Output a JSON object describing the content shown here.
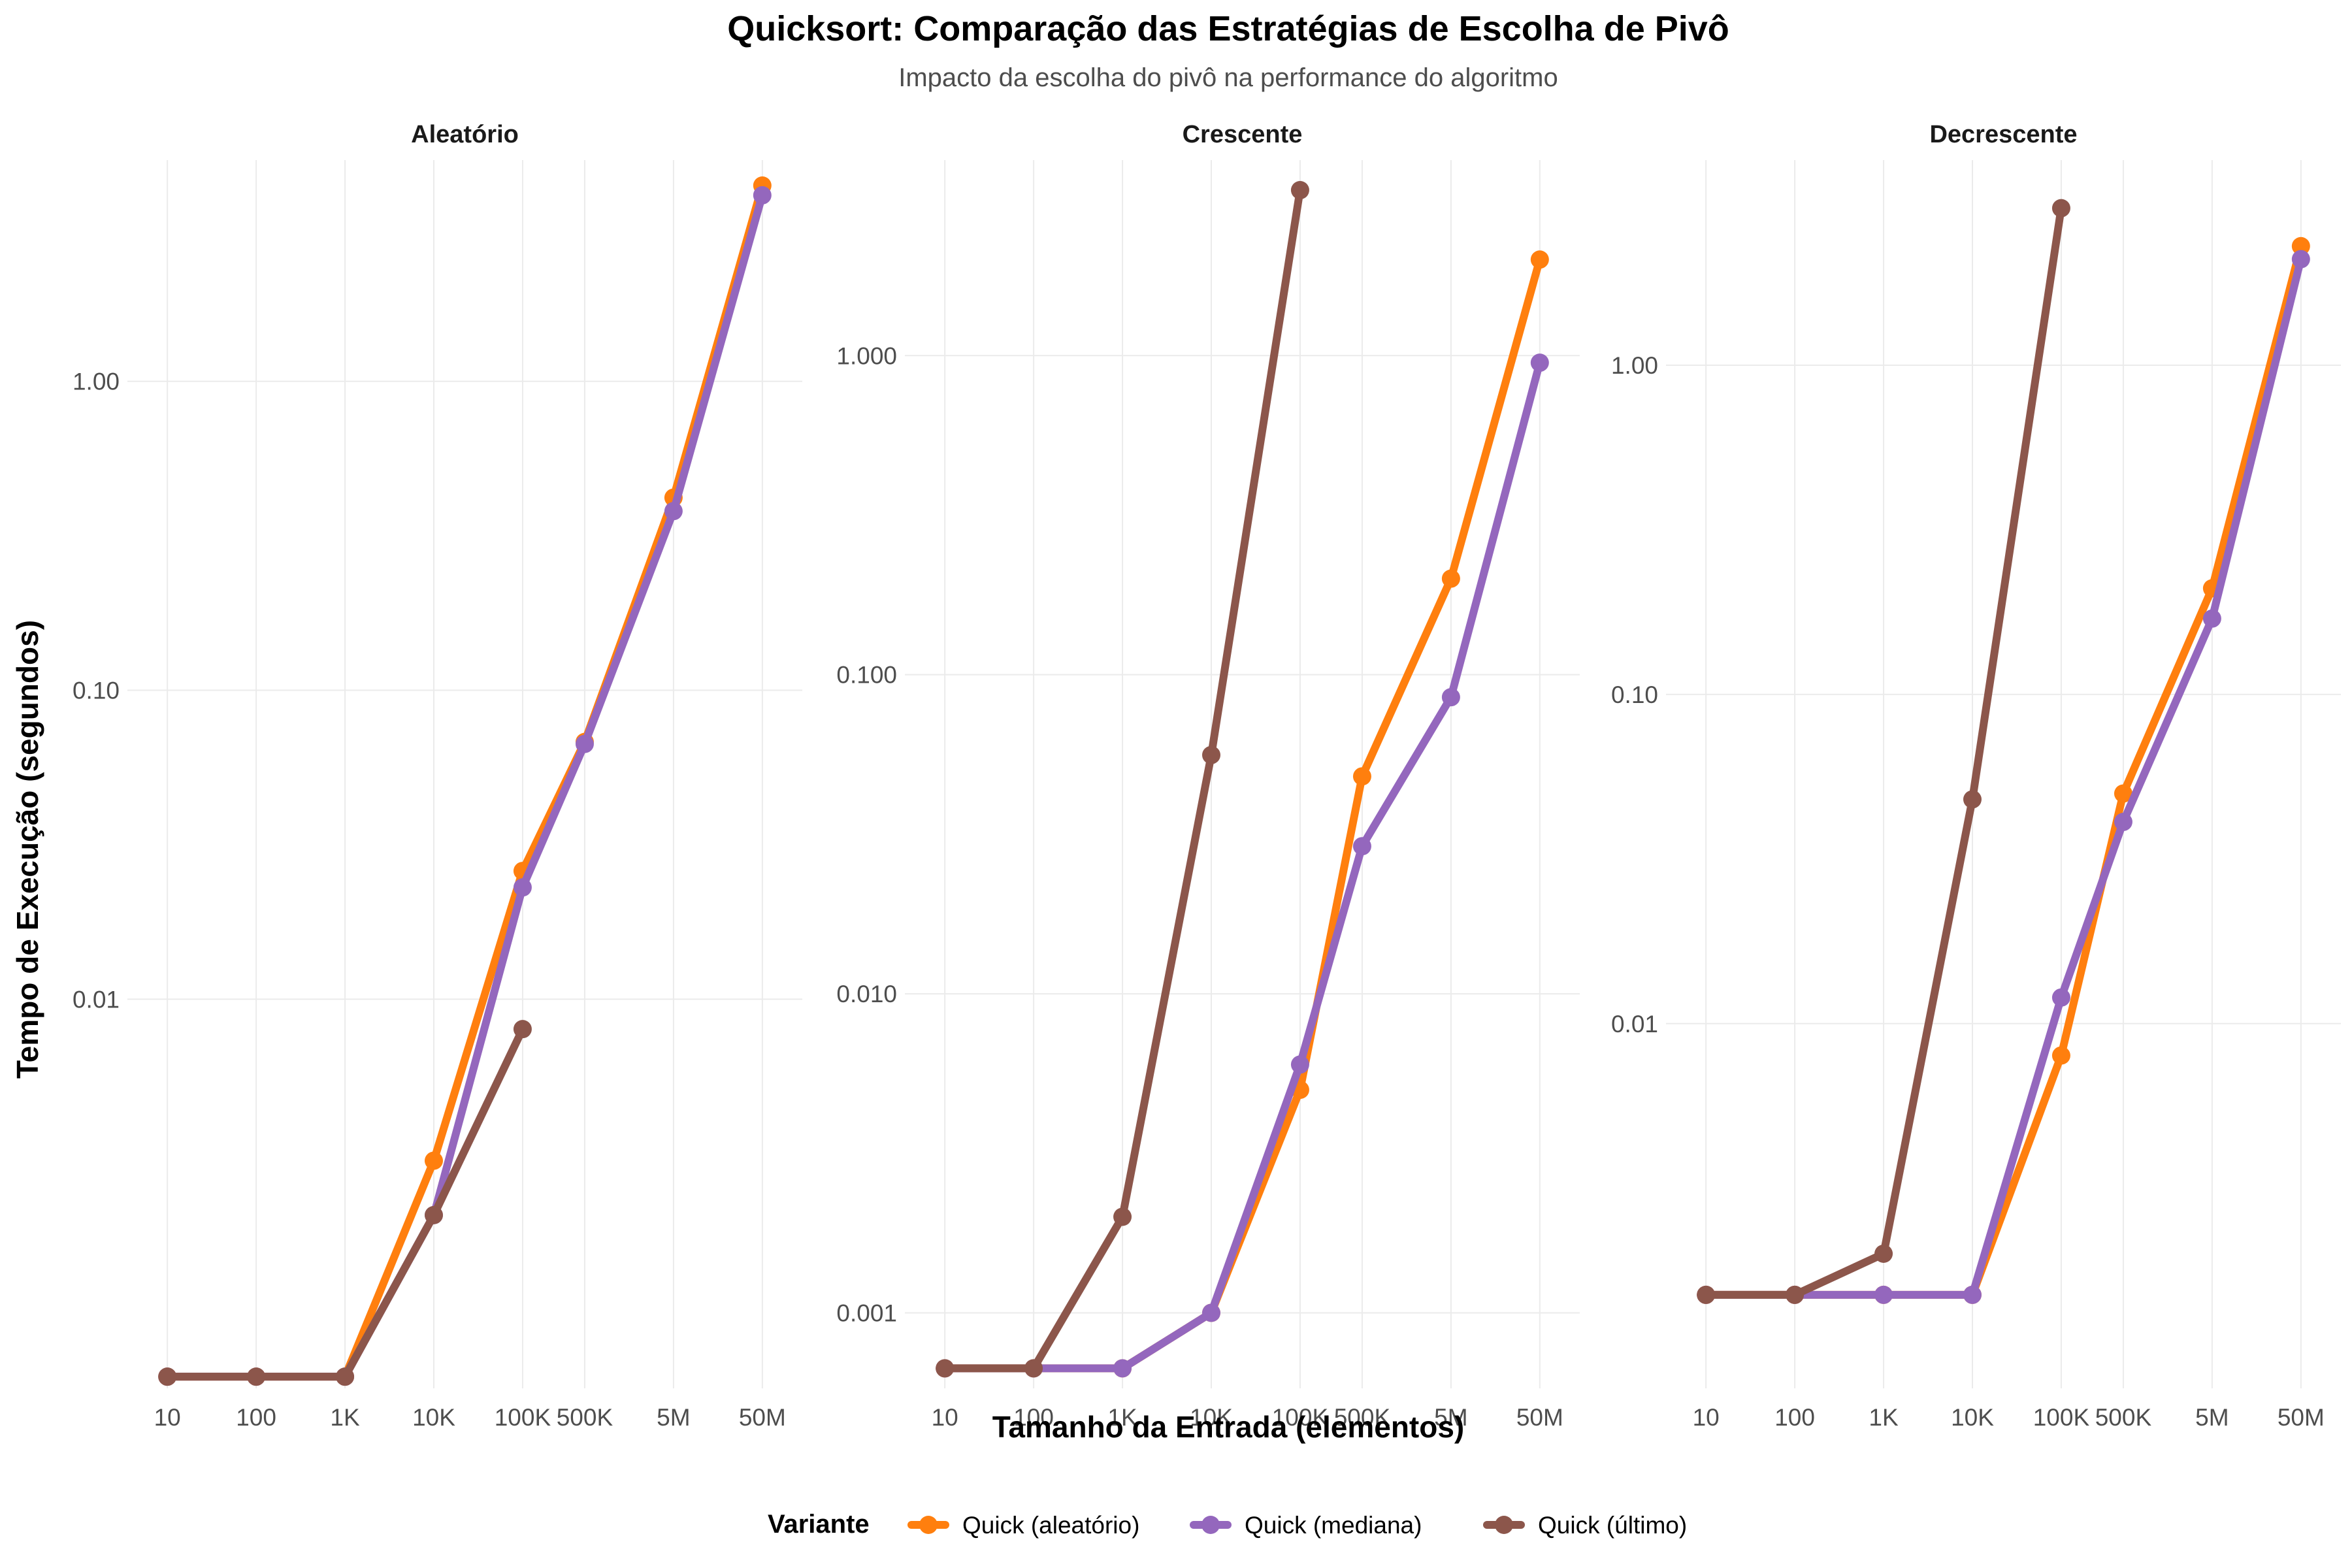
{
  "chart_data": {
    "type": "line",
    "title": "Quicksort: Comparação das Estratégias de Escolha de Pivô",
    "subtitle": "Impacto da escolha do pivô na performance do algoritmo",
    "xlabel": "Tamanho da Entrada (elementos)",
    "ylabel": "Tempo de Execução (segundos)",
    "y_scale": "log",
    "grid": true,
    "legend_position": "bottom",
    "legend_title": "Variante",
    "x_categories": [
      "10",
      "100",
      "1K",
      "10K",
      "100K",
      "500K",
      "5M",
      "50M"
    ],
    "x_values": [
      10,
      100,
      1000,
      10000,
      100000,
      500000,
      5000000,
      50000000
    ],
    "series_styles": [
      {
        "name": "Quick (aleatório)",
        "color": "#ff7f0e"
      },
      {
        "name": "Quick (mediana)",
        "color": "#9467bd"
      },
      {
        "name": "Quick (último)",
        "color": "#8c564b"
      }
    ],
    "facets": [
      {
        "label": "Aleatório",
        "ylim": [
          0.00055,
          5.2
        ],
        "y_ticks": [
          0.01,
          0.1,
          1.0
        ],
        "y_tick_labels": [
          "0.01",
          "0.10",
          "1.00"
        ],
        "series": [
          {
            "name": "Quick (aleatório)",
            "values": [
              0.0006,
              0.0006,
              0.0006,
              0.003,
              0.026,
              0.068,
              0.42,
              4.3
            ]
          },
          {
            "name": "Quick (mediana)",
            "values": [
              0.0006,
              0.0006,
              0.0006,
              0.002,
              0.023,
              0.067,
              0.38,
              4.0
            ]
          },
          {
            "name": "Quick (último)",
            "values": [
              0.0006,
              0.0006,
              0.0006,
              0.002,
              0.008,
              null,
              null,
              null
            ]
          }
        ]
      },
      {
        "label": "Crescente",
        "ylim": [
          0.00058,
          4.1
        ],
        "y_ticks": [
          0.001,
          0.01,
          0.1,
          1.0
        ],
        "y_tick_labels": [
          "0.001",
          "0.010",
          "0.100",
          "1.000"
        ],
        "series": [
          {
            "name": "Quick (aleatório)",
            "values": [
              0.00067,
              0.00067,
              0.00067,
              0.001,
              0.005,
              0.048,
              0.2,
              2.0
            ]
          },
          {
            "name": "Quick (mediana)",
            "values": [
              0.00067,
              0.00067,
              0.00067,
              0.001,
              0.006,
              0.029,
              0.085,
              0.95
            ]
          },
          {
            "name": "Quick (último)",
            "values": [
              0.00067,
              0.00067,
              0.002,
              0.056,
              3.3,
              null,
              null,
              null
            ]
          }
        ]
      },
      {
        "label": "Decrescente",
        "ylim": [
          0.00078,
          4.2
        ],
        "y_ticks": [
          0.01,
          0.1,
          1.0
        ],
        "y_tick_labels": [
          "0.01",
          "0.10",
          "1.00"
        ],
        "series": [
          {
            "name": "Quick (aleatório)",
            "values": [
              0.0015,
              0.0015,
              0.0015,
              0.0015,
              0.008,
              0.05,
              0.21,
              2.3
            ]
          },
          {
            "name": "Quick (mediana)",
            "values": [
              0.0015,
              0.0015,
              0.0015,
              0.0015,
              0.012,
              0.041,
              0.17,
              2.1
            ]
          },
          {
            "name": "Quick (último)",
            "values": [
              0.0015,
              0.0015,
              0.002,
              0.048,
              3.0,
              null,
              null,
              null
            ]
          }
        ]
      }
    ]
  }
}
